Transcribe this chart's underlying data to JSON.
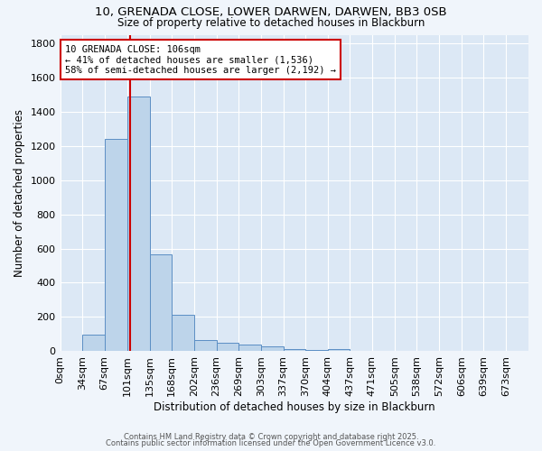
{
  "title": "10, GRENADA CLOSE, LOWER DARWEN, DARWEN, BB3 0SB",
  "subtitle": "Size of property relative to detached houses in Blackburn",
  "xlabel": "Distribution of detached houses by size in Blackburn",
  "ylabel": "Number of detached properties",
  "bar_labels": [
    "0sqm",
    "34sqm",
    "67sqm",
    "101sqm",
    "135sqm",
    "168sqm",
    "202sqm",
    "236sqm",
    "269sqm",
    "303sqm",
    "337sqm",
    "370sqm",
    "404sqm",
    "437sqm",
    "471sqm",
    "505sqm",
    "538sqm",
    "572sqm",
    "606sqm",
    "639sqm",
    "673sqm"
  ],
  "bar_values": [
    0,
    95,
    1240,
    1490,
    565,
    210,
    65,
    50,
    38,
    28,
    10,
    5,
    10,
    3,
    0,
    0,
    0,
    0,
    0,
    0,
    0
  ],
  "bar_color": "#bdd4ea",
  "bar_edgecolor": "#5b8ec4",
  "background_color": "#dce8f5",
  "grid_color": "#ffffff",
  "vline_x": 106,
  "bin_edges": [
    0,
    34,
    67,
    101,
    135,
    168,
    202,
    236,
    269,
    303,
    337,
    370,
    404,
    437,
    471,
    505,
    538,
    572,
    606,
    639,
    673,
    707
  ],
  "annotation_text": "10 GRENADA CLOSE: 106sqm\n← 41% of detached houses are smaller (1,536)\n58% of semi-detached houses are larger (2,192) →",
  "annotation_box_facecolor": "#ffffff",
  "annotation_box_edgecolor": "#cc0000",
  "ylim": [
    0,
    1850
  ],
  "yticks": [
    0,
    200,
    400,
    600,
    800,
    1000,
    1200,
    1400,
    1600,
    1800
  ],
  "footer_line1": "Contains HM Land Registry data © Crown copyright and database right 2025.",
  "footer_line2": "Contains public sector information licensed under the Open Government Licence v3.0.",
  "fig_facecolor": "#f0f5fb"
}
